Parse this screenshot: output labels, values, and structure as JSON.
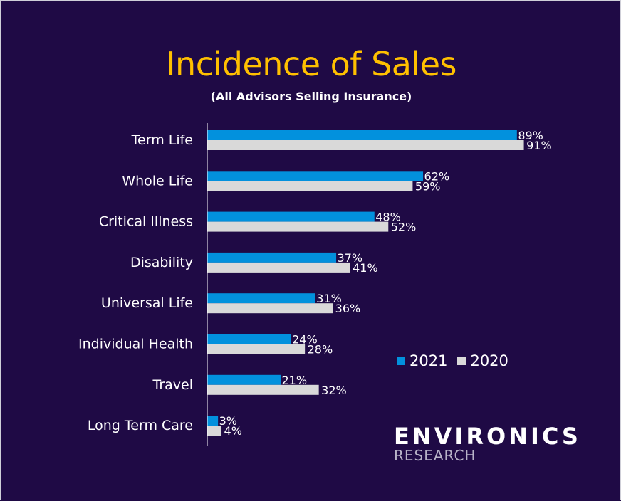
{
  "chart_data": {
    "type": "bar",
    "orientation": "horizontal",
    "title": "Incidence of Sales",
    "subtitle": "(All Advisors Selling Insurance)",
    "categories": [
      "Term Life",
      "Whole Life",
      "Critical Illness",
      "Disability",
      "Universal Life",
      "Individual Health",
      "Travel",
      "Long Term Care"
    ],
    "series": [
      {
        "name": "2021",
        "color": "#0291dd",
        "values": [
          89,
          62,
          48,
          37,
          31,
          24,
          21,
          3
        ]
      },
      {
        "name": "2020",
        "color": "#d9d9d9",
        "values": [
          91,
          59,
          52,
          41,
          36,
          28,
          32,
          4
        ]
      }
    ],
    "value_suffix": "%",
    "xlim": [
      0,
      100
    ],
    "grid": false,
    "legend_position": "right"
  },
  "logo": {
    "line1": "ENVIRONICS",
    "line2": "RESEARCH"
  }
}
